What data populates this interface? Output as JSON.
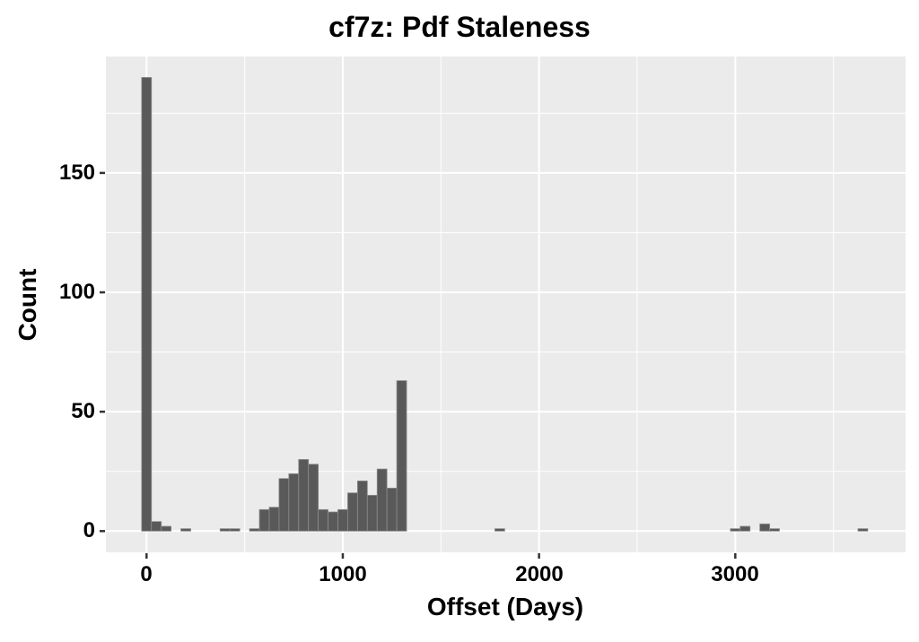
{
  "title": "cf7z: Pdf Staleness",
  "chart_data": {
    "type": "bar",
    "subtype": "histogram",
    "title": "cf7z: Pdf Staleness",
    "xlabel": "Offset (Days)",
    "ylabel": "Count",
    "bin_width_days": 50,
    "bins_nonzero": [
      [
        0,
        190
      ],
      [
        50,
        4
      ],
      [
        100,
        2
      ],
      [
        200,
        1
      ],
      [
        400,
        1
      ],
      [
        450,
        1
      ],
      [
        550,
        1
      ],
      [
        600,
        9
      ],
      [
        650,
        10
      ],
      [
        700,
        22
      ],
      [
        750,
        24
      ],
      [
        800,
        30
      ],
      [
        850,
        28
      ],
      [
        900,
        9
      ],
      [
        950,
        8
      ],
      [
        1000,
        9
      ],
      [
        1050,
        16
      ],
      [
        1100,
        21
      ],
      [
        1150,
        15
      ],
      [
        1200,
        26
      ],
      [
        1250,
        18
      ],
      [
        1300,
        63
      ],
      [
        1800,
        1
      ],
      [
        3000,
        1
      ],
      [
        3050,
        2
      ],
      [
        3150,
        3
      ],
      [
        3200,
        1
      ],
      [
        3650,
        1
      ]
    ],
    "x_tick_values": [
      0,
      1000,
      2000,
      3000
    ],
    "x_tick_labels": [
      "0",
      "1000",
      "2000",
      "3000"
    ],
    "x_minor_gridlines": [
      500,
      1500,
      2500,
      3500
    ],
    "y_tick_values": [
      0,
      50,
      100,
      150
    ],
    "y_tick_labels": [
      "0",
      "50",
      "100",
      "150"
    ],
    "y_minor_gridlines": [
      25,
      75,
      125,
      175
    ],
    "xlim": [
      -207,
      3867
    ],
    "ylim": [
      -9,
      199
    ],
    "grid": true,
    "legend": "none",
    "colors": {
      "panel_background": "#EBEBEB",
      "gridline": "#FFFFFF",
      "bar_fill": "#595959",
      "bar_edge": "#8C8C8C",
      "text": "#000000",
      "tick_mark": "#333333",
      "page_background": "#FFFFFF"
    }
  }
}
